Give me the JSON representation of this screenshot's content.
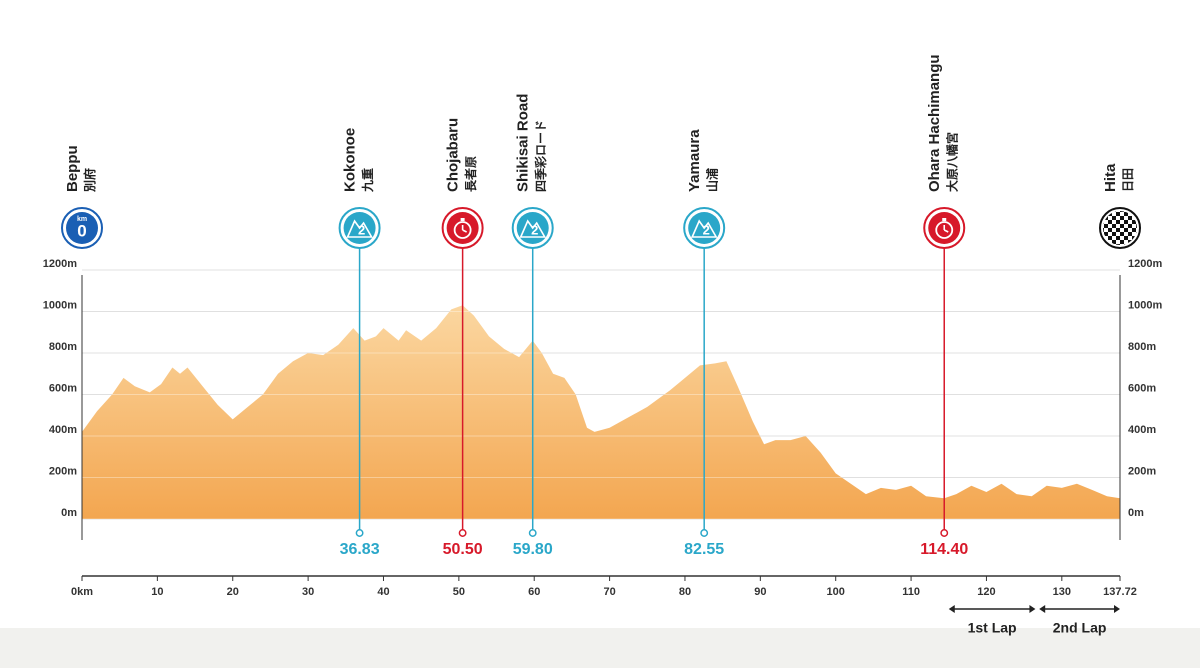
{
  "chart_data": {
    "type": "area",
    "fill_top": "#fbd7a1",
    "fill_bottom": "#f3a650",
    "x": [
      0,
      2,
      4,
      5.5,
      7,
      9,
      10.5,
      12,
      13,
      14,
      16,
      18,
      20,
      22,
      24,
      26,
      28,
      30,
      32,
      34,
      36,
      37.5,
      39,
      40,
      42,
      43,
      45,
      47,
      49,
      50.5,
      52,
      54,
      56,
      58,
      59.8,
      61,
      62.5,
      64,
      65.5,
      67,
      68,
      70,
      72,
      75,
      78,
      80,
      82,
      84,
      85.5,
      87,
      89,
      90.5,
      92,
      94,
      96,
      98,
      100,
      102,
      104,
      106,
      108,
      110,
      112,
      114.4,
      116,
      118,
      120,
      122,
      124,
      126,
      128,
      130,
      132,
      134,
      136,
      137.72
    ],
    "values": [
      420,
      520,
      600,
      680,
      640,
      610,
      650,
      730,
      700,
      730,
      640,
      550,
      480,
      540,
      600,
      700,
      760,
      800,
      790,
      840,
      920,
      860,
      880,
      920,
      860,
      910,
      860,
      920,
      1010,
      1030,
      980,
      880,
      820,
      780,
      860,
      800,
      700,
      680,
      600,
      440,
      420,
      440,
      480,
      540,
      620,
      680,
      740,
      750,
      760,
      640,
      470,
      360,
      380,
      380,
      400,
      320,
      220,
      170,
      120,
      150,
      140,
      160,
      110,
      100,
      120,
      160,
      130,
      170,
      120,
      110,
      160,
      150,
      170,
      140,
      110,
      100
    ],
    "xlim": [
      0,
      137.72
    ],
    "ylim": [
      0,
      1200
    ],
    "xticks": [
      {
        "value": 0,
        "label": "0km"
      },
      10,
      20,
      30,
      40,
      50,
      60,
      70,
      80,
      90,
      100,
      110,
      120,
      130,
      137.72
    ],
    "yticks": [
      {
        "value": 0,
        "label": "0m"
      },
      {
        "value": 200,
        "label": "200m"
      },
      {
        "value": 400,
        "label": "400m"
      },
      {
        "value": 600,
        "label": "600m"
      },
      {
        "value": 800,
        "label": "800m"
      },
      {
        "value": 1000,
        "label": "1000m"
      },
      {
        "value": 1200,
        "label": "1200m"
      }
    ],
    "grid": true,
    "markers": [
      {
        "name": "Beppu",
        "name_ja": "別府",
        "km": 0,
        "kind": "start",
        "color": "#1a5fb4",
        "icon_text": "0",
        "icon_unit": "km"
      },
      {
        "name": "Kokonoe",
        "name_ja": "九重",
        "km": 36.83,
        "km_label": "36.83",
        "kind": "kom",
        "color": "#2aa7c9",
        "icon_text": "2"
      },
      {
        "name": "Chojabaru",
        "name_ja": "長者原",
        "km": 50.5,
        "km_label": "50.50",
        "kind": "sprint",
        "color": "#d7192a"
      },
      {
        "name": "Shikisai Road",
        "name_ja": "四季彩ロード",
        "km": 59.8,
        "km_label": "59.80",
        "kind": "kom",
        "color": "#2aa7c9",
        "icon_text": "2"
      },
      {
        "name": "Yamaura",
        "name_ja": "山浦",
        "km": 82.55,
        "km_label": "82.55",
        "kind": "kom",
        "color": "#2aa7c9",
        "icon_text": "2"
      },
      {
        "name": "Ohara Hachimangu",
        "name_ja": "大原八幡宮",
        "km": 114.4,
        "km_label": "114.40",
        "kind": "sprint",
        "color": "#d7192a"
      },
      {
        "name": "Hita",
        "name_ja": "日田",
        "km": 137.72,
        "kind": "finish",
        "color": "#111111"
      }
    ],
    "laps": [
      {
        "label": "1st Lap",
        "from": 115,
        "to": 126.5
      },
      {
        "label": "2nd Lap",
        "from": 127,
        "to": 137.72
      }
    ]
  }
}
